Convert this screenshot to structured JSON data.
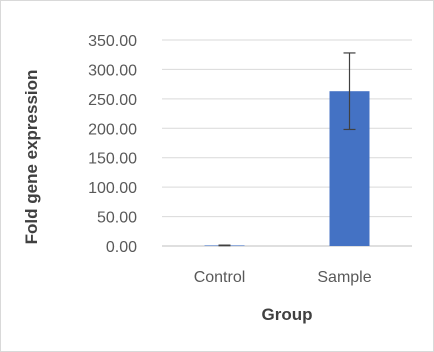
{
  "chart_data": {
    "type": "bar",
    "title": "",
    "xlabel": "Group",
    "ylabel": "Fold gene expression",
    "categories": [
      "Control",
      "Sample"
    ],
    "values": [
      1.0,
      263.0
    ],
    "error": [
      0.5,
      65.0
    ],
    "ylim": [
      0,
      350
    ],
    "yticks": [
      0,
      50,
      100,
      150,
      200,
      250,
      300,
      350
    ],
    "ytick_labels": [
      "0.00",
      "50.00",
      "100.00",
      "150.00",
      "200.00",
      "250.00",
      "300.00",
      "350.00"
    ],
    "grid": true,
    "legend": "none",
    "colors": {
      "bar": "#4472c4",
      "grid": "#d9d9d9",
      "axis": "#bfbfbf",
      "error": "#404040"
    }
  }
}
